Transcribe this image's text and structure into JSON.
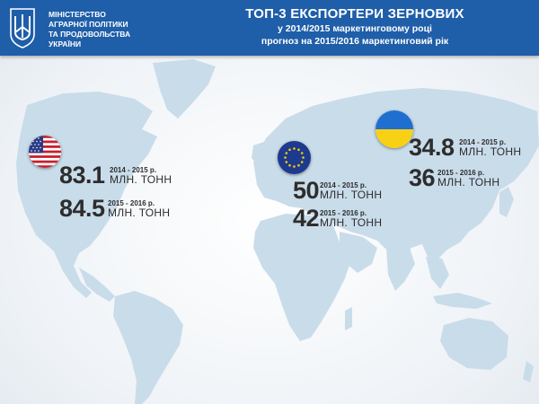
{
  "header": {
    "ministry_lines": [
      "МІНІСТЕРСТВО",
      "АГРАРНОЇ ПОЛІТИКИ",
      "ТА ПРОДОВОЛЬСТВА",
      "УКРАЇНИ"
    ],
    "title": "ТОП-3 ЕКСПОРТЕРИ ЗЕРНОВИХ",
    "subtitle_line1": "у 2014/2015 маркетинговому році",
    "subtitle_line2": "прогноз на 2015/2016 маркетинговий рік"
  },
  "colors": {
    "header_bg": "#1f5ea8",
    "land": "#c9dcea",
    "text": "#2d2d2d"
  },
  "exporters": {
    "usa": {
      "flag_icon": "usa-flag-icon",
      "stats": [
        {
          "value": "83.1",
          "period": "2014 - 2015 р.",
          "unit": "МЛН. ТОНН"
        },
        {
          "value": "84.5",
          "period": "2015 - 2016 р.",
          "unit": "МЛН. ТОНН"
        }
      ]
    },
    "eu": {
      "flag_icon": "eu-flag-icon",
      "stats": [
        {
          "value": "50",
          "period": "2014 - 2015 р.",
          "unit": "МЛН. ТОНН"
        },
        {
          "value": "42",
          "period": "2015 - 2016 р.",
          "unit": "МЛН. ТОНН"
        }
      ]
    },
    "ukraine": {
      "flag_icon": "ukraine-flag-icon",
      "stats": [
        {
          "value": "34.8",
          "period": "2014 - 2015 р.",
          "unit": "МЛН. ТОНН"
        },
        {
          "value": "36",
          "period": "2015 - 2016 р.",
          "unit": "МЛН. ТОНН"
        }
      ]
    }
  }
}
